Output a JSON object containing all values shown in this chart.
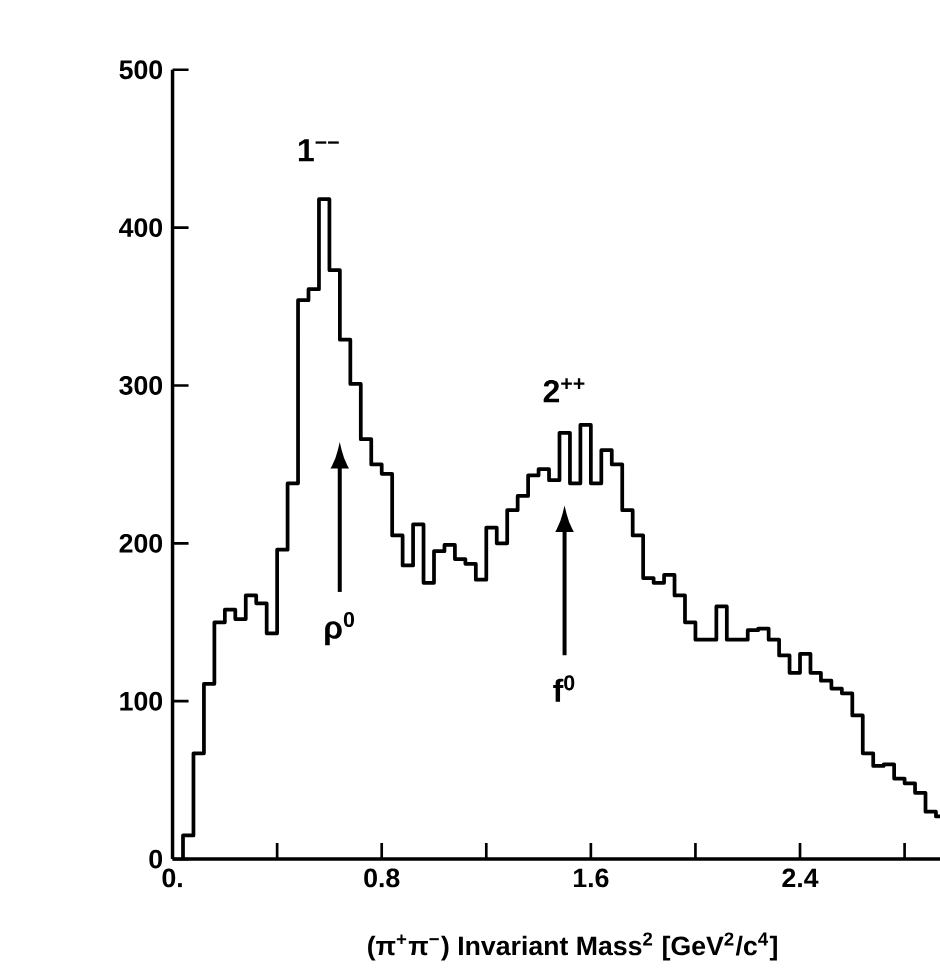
{
  "chart_data": {
    "type": "histogram",
    "xlabel": "(π$^{+}$π$^{−}$) Invariant Mass$^{2}$ [GeV$^{2}$/c$^{4}$]",
    "bins": [
      0.04,
      0.08,
      0.12,
      0.16,
      0.2,
      0.24,
      0.28,
      0.32,
      0.36,
      0.4,
      0.44,
      0.48,
      0.52,
      0.56,
      0.6,
      0.64,
      0.68,
      0.72,
      0.76,
      0.8,
      0.84,
      0.88,
      0.92,
      0.96,
      1.0,
      1.04,
      1.08,
      1.12,
      1.16,
      1.2,
      1.24,
      1.28,
      1.32,
      1.36,
      1.4,
      1.44,
      1.48,
      1.52,
      1.56,
      1.6,
      1.64,
      1.68,
      1.72,
      1.76,
      1.8,
      1.84,
      1.88,
      1.92,
      1.96,
      2.0,
      2.04,
      2.08,
      2.12,
      2.16,
      2.2,
      2.24,
      2.28,
      2.32,
      2.36,
      2.4,
      2.44,
      2.48,
      2.52,
      2.56,
      2.6,
      2.64,
      2.68,
      2.72,
      2.76,
      2.8,
      2.84,
      2.88,
      2.92,
      2.96,
      3.0
    ],
    "values": [
      15,
      67,
      111,
      150,
      158,
      152,
      167,
      162,
      143,
      196,
      238,
      354,
      361,
      418,
      373,
      329,
      301,
      266,
      250,
      244,
      205,
      186,
      212,
      175,
      195,
      199,
      190,
      187,
      177,
      210,
      200,
      221,
      230,
      243,
      247,
      240,
      270,
      238,
      275,
      238,
      259,
      250,
      221,
      205,
      178,
      175,
      180,
      167,
      150,
      139,
      139,
      160,
      139,
      139,
      145,
      146,
      139,
      129,
      118,
      130,
      118,
      113,
      108,
      105,
      91,
      67,
      59,
      60,
      51,
      48,
      42,
      30,
      27,
      33
    ],
    "color": "#000000",
    "xlim": [
      0,
      3.06
    ],
    "ylim": [
      0,
      500
    ],
    "xticks": [
      {
        "value": 0,
        "label": "0."
      },
      {
        "value": 0.4,
        "label": null
      },
      {
        "value": 0.8,
        "label": "0.8"
      },
      {
        "value": 1.2,
        "label": null
      },
      {
        "value": 1.6,
        "label": "1.6"
      },
      {
        "value": 2.0,
        "label": null
      },
      {
        "value": 2.4,
        "label": "2.4"
      },
      {
        "value": 2.8,
        "label": null
      }
    ],
    "yticks": [
      0,
      100,
      200,
      300,
      400,
      500
    ],
    "annotations": [
      "1$^{−−}$",
      "2$^{++}$",
      "ρ$^{0}$",
      "f$^{0}$"
    ]
  }
}
